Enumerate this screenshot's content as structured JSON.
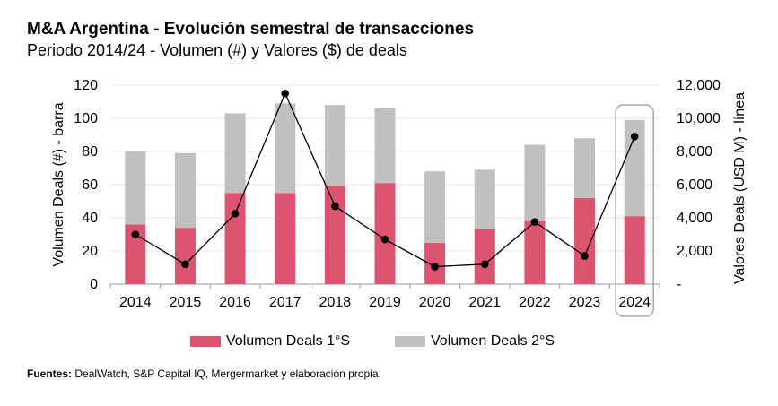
{
  "chart_data": {
    "type": "bar",
    "title": "M&A Argentina - Evolución semestral de transacciones",
    "subtitle": "Periodo 2014/24 - Volumen (#) y Valores ($) de deals",
    "categories": [
      "2014",
      "2015",
      "2016",
      "2017",
      "2018",
      "2019",
      "2020",
      "2021",
      "2022",
      "2023",
      "2024"
    ],
    "stacked": true,
    "series": [
      {
        "name": "Volumen Deals 1°S",
        "type": "bar",
        "axis": "left",
        "color": "#dd5470",
        "values": [
          36,
          34,
          55,
          55,
          59,
          61,
          25,
          33,
          38,
          52,
          41
        ]
      },
      {
        "name": "Volumen Deals 2°S",
        "type": "bar",
        "axis": "left",
        "color": "#c0c0c0",
        "values": [
          44,
          45,
          48,
          54,
          49,
          45,
          43,
          36,
          46,
          36,
          58
        ]
      },
      {
        "name": "",
        "type": "line",
        "axis": "right",
        "color": "#000000",
        "values": [
          3000,
          1200,
          4250,
          11500,
          4700,
          2700,
          1050,
          1200,
          3750,
          1700,
          8900
        ]
      }
    ],
    "ylabel": "Volumen Deals (#) - barra",
    "ylim": [
      0,
      120
    ],
    "y_ticks": [
      "0",
      "20",
      "40",
      "60",
      "80",
      "100",
      "120"
    ],
    "y2label": "Valores Deals (USD M) - línea",
    "y2lim": [
      0,
      12000
    ],
    "y2_ticks": [
      "-",
      "2,000",
      "4,000",
      "6,000",
      "8,000",
      "10,000",
      "12,000"
    ],
    "highlight_category": "2024",
    "grid": true,
    "legend_position": "bottom"
  },
  "footer": {
    "source_label": "Fuentes:",
    "source_text": " DealWatch, S&P Capital IQ, Mergermarket y elaboración propia."
  }
}
